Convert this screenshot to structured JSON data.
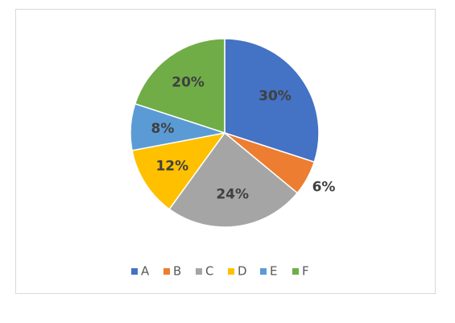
{
  "chart_data": {
    "type": "pie",
    "categories": [
      "A",
      "B",
      "C",
      "D",
      "E",
      "F"
    ],
    "values": [
      30,
      6,
      24,
      12,
      8,
      20
    ],
    "value_labels": [
      "30%",
      "6%",
      "24%",
      "12%",
      "8%",
      "20%"
    ],
    "colors": [
      "#4472c4",
      "#ed7d31",
      "#a5a5a5",
      "#ffc000",
      "#5b9bd5",
      "#70ad47"
    ],
    "legend": "bottom"
  }
}
